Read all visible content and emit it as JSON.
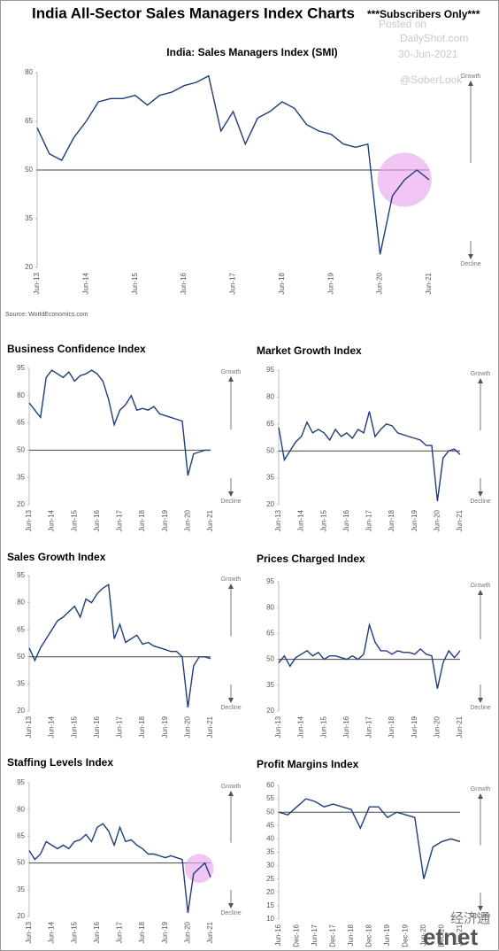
{
  "header": {
    "title": "India All-Sector Sales Managers Index Charts",
    "badge": "***Subscribers Only***",
    "posted_on": "Posted on",
    "site": "DailyShot.com",
    "date": "30-Jun-2021",
    "handle": "@SoberLook",
    "watermark_cn": "经济通",
    "watermark": "etnet"
  },
  "chart_data": [
    {
      "type": "line",
      "title": "India: Sales Managers Index (SMI)",
      "source": "Source: WorldEconomics.com",
      "growth_label": "Growth",
      "decline_label": "Decline",
      "color": "#1f3d7a",
      "ref_line": 50,
      "highlight": true,
      "categories": [
        "Jun-13",
        null,
        null,
        null,
        "Jun-14",
        null,
        null,
        null,
        "Jun-15",
        null,
        null,
        null,
        "Jun-16",
        null,
        null,
        null,
        "Jun-17",
        null,
        null,
        null,
        "Jun-18",
        null,
        null,
        null,
        "Jun-19",
        null,
        null,
        null,
        "Jun-20",
        null,
        null,
        null,
        "Jun-21"
      ],
      "values": [
        63,
        55,
        53,
        60,
        65,
        71,
        72,
        72,
        73,
        70,
        73,
        74,
        76,
        77,
        79,
        62,
        68,
        58,
        66,
        68,
        71,
        69,
        64,
        62,
        61,
        58,
        57,
        58,
        24,
        42,
        47,
        50,
        47
      ],
      "ylim": [
        20,
        80
      ],
      "yticks": [
        20,
        35,
        50,
        65,
        80
      ]
    },
    {
      "type": "line",
      "title": "Business Confidence Index",
      "growth_label": "Growth",
      "decline_label": "Decline",
      "color": "#1f3d7a",
      "ref_line": 50,
      "highlight": false,
      "categories": [
        "Jun-13",
        null,
        null,
        null,
        "Jun-14",
        null,
        null,
        null,
        "Jun-15",
        null,
        null,
        null,
        "Jun-16",
        null,
        null,
        null,
        "Jun-17",
        null,
        null,
        null,
        "Jun-18",
        null,
        null,
        null,
        "Jun-19",
        null,
        null,
        null,
        "Jun-20",
        null,
        null,
        null,
        "Jun-21"
      ],
      "values": [
        76,
        72,
        68,
        90,
        94,
        92,
        90,
        93,
        88,
        91,
        92,
        94,
        92,
        88,
        78,
        64,
        72,
        75,
        80,
        72,
        73,
        72,
        74,
        70,
        69,
        68,
        67,
        66,
        36,
        48,
        49,
        50,
        50
      ],
      "ylim": [
        20,
        95
      ],
      "yticks": [
        20,
        35,
        50,
        65,
        80,
        95
      ]
    },
    {
      "type": "line",
      "title": "Market Growth Index",
      "growth_label": "Growth",
      "decline_label": "Decline",
      "color": "#1f3d7a",
      "ref_line": 50,
      "highlight": false,
      "categories": [
        "Jun-13",
        null,
        null,
        null,
        "Jun-14",
        null,
        null,
        null,
        "Jun-15",
        null,
        null,
        null,
        "Jun-16",
        null,
        null,
        null,
        "Jun-17",
        null,
        null,
        null,
        "Jun-18",
        null,
        null,
        null,
        "Jun-19",
        null,
        null,
        null,
        "Jun-20",
        null,
        null,
        null,
        "Jun-21"
      ],
      "values": [
        63,
        45,
        50,
        55,
        58,
        66,
        60,
        62,
        60,
        56,
        62,
        58,
        60,
        57,
        62,
        60,
        72,
        58,
        62,
        65,
        64,
        60,
        59,
        58,
        57,
        56,
        53,
        53,
        22,
        46,
        50,
        51,
        48
      ],
      "ylim": [
        20,
        95
      ],
      "yticks": [
        20,
        35,
        50,
        65,
        80,
        95
      ]
    },
    {
      "type": "line",
      "title": "Sales Growth Index",
      "growth_label": "Growth",
      "decline_label": "Decline",
      "color": "#1f3d7a",
      "ref_line": 50,
      "highlight": false,
      "categories": [
        "Jun-13",
        null,
        null,
        null,
        "Jun-14",
        null,
        null,
        null,
        "Jun-15",
        null,
        null,
        null,
        "Jun-16",
        null,
        null,
        null,
        "Jun-17",
        null,
        null,
        null,
        "Jun-18",
        null,
        null,
        null,
        "Jun-19",
        null,
        null,
        null,
        "Jun-20",
        null,
        null,
        null,
        "Jun-21"
      ],
      "values": [
        55,
        48,
        55,
        60,
        65,
        70,
        72,
        75,
        78,
        72,
        82,
        80,
        85,
        88,
        90,
        60,
        68,
        58,
        60,
        62,
        57,
        58,
        56,
        55,
        54,
        53,
        53,
        50,
        22,
        45,
        50,
        50,
        49
      ],
      "ylim": [
        20,
        95
      ],
      "yticks": [
        20,
        35,
        50,
        65,
        80,
        95
      ]
    },
    {
      "type": "line",
      "title": "Prices Charged Index",
      "growth_label": "Growth",
      "decline_label": "Decline",
      "color": "#1f3d7a",
      "ref_line": 50,
      "highlight": false,
      "categories": [
        "Jun-13",
        null,
        null,
        null,
        "Jun-14",
        null,
        null,
        null,
        "Jun-15",
        null,
        null,
        null,
        "Jun-16",
        null,
        null,
        null,
        "Jun-17",
        null,
        null,
        null,
        "Jun-18",
        null,
        null,
        null,
        "Jun-19",
        null,
        null,
        null,
        "Jun-20",
        null,
        null,
        null,
        "Jun-21"
      ],
      "values": [
        48,
        52,
        46,
        51,
        53,
        55,
        52,
        54,
        50,
        52,
        52,
        51,
        50,
        52,
        50,
        53,
        70,
        60,
        55,
        55,
        53,
        55,
        54,
        54,
        53,
        56,
        53,
        52,
        33,
        48,
        55,
        51,
        55
      ],
      "ylim": [
        20,
        95
      ],
      "yticks": [
        20,
        35,
        50,
        65,
        80,
        95
      ]
    },
    {
      "type": "line",
      "title": "Staffing Levels Index",
      "growth_label": "Growth",
      "decline_label": "Decline",
      "color": "#1f3d7a",
      "ref_line": 50,
      "highlight": true,
      "categories": [
        "Jun-13",
        null,
        null,
        null,
        "Jun-14",
        null,
        null,
        null,
        "Jun-15",
        null,
        null,
        null,
        "Jun-16",
        null,
        null,
        null,
        "Jun-17",
        null,
        null,
        null,
        "Jun-18",
        null,
        null,
        null,
        "Jun-19",
        null,
        null,
        null,
        "Jun-20",
        null,
        null,
        null,
        "Jun-21"
      ],
      "values": [
        57,
        52,
        55,
        62,
        60,
        58,
        60,
        58,
        62,
        63,
        66,
        62,
        70,
        72,
        68,
        60,
        70,
        62,
        63,
        60,
        58,
        55,
        55,
        54,
        53,
        54,
        53,
        52,
        22,
        44,
        47,
        50,
        42
      ],
      "ylim": [
        20,
        95
      ],
      "yticks": [
        20,
        35,
        50,
        65,
        80,
        95
      ]
    },
    {
      "type": "line",
      "title": "Profit Margins Index",
      "growth_label": "Growth",
      "decline_label": "Decline",
      "color": "#1f3d7a",
      "ref_line": 50,
      "highlight": false,
      "categories": [
        "Jun-16",
        null,
        "Dec-16",
        null,
        "Jun-17",
        null,
        "Dec-17",
        null,
        "Jun-18",
        null,
        "Dec-18",
        null,
        "Jun-19",
        null,
        "Dec-19",
        null,
        "Jun-20",
        null,
        "Dec-20",
        null,
        "Jun-21"
      ],
      "values": [
        50,
        49,
        52,
        55,
        54,
        52,
        53,
        52,
        51,
        44,
        52,
        52,
        48,
        50,
        49,
        48,
        25,
        37,
        39,
        40,
        39
      ],
      "ylim": [
        10,
        60
      ],
      "yticks": [
        10,
        15,
        20,
        25,
        30,
        35,
        40,
        45,
        50,
        55,
        60
      ]
    }
  ]
}
